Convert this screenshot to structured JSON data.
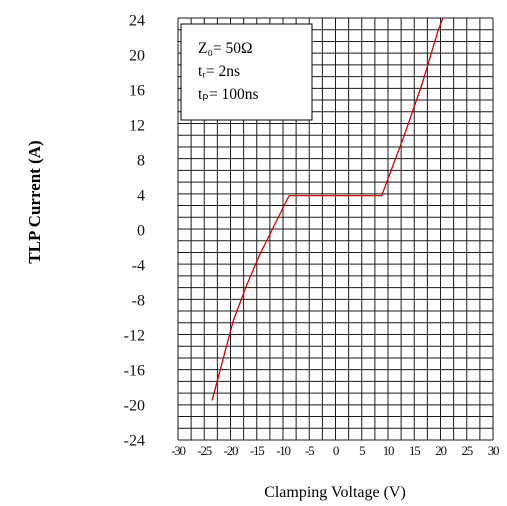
{
  "chart_data": {
    "type": "line",
    "title": "",
    "xlabel": "Clamping Voltage (V)",
    "ylabel": "TLP Current (A)",
    "xlim": [
      -30,
      30
    ],
    "ylim": [
      -24,
      24
    ],
    "grid": true,
    "x_ticks": [
      -30,
      -25,
      -20,
      -15,
      -10,
      -5,
      0,
      5,
      10,
      15,
      20,
      25,
      30
    ],
    "y_tick_labels": [
      "24",
      "20",
      "16",
      "12",
      "8",
      "4",
      "0",
      "-4",
      "-8",
      "-12",
      "-16",
      "-20",
      "-24"
    ],
    "annotations": [
      "Z₀= 50Ω",
      "tᵣ= 2ns",
      "tₚ= 100ns"
    ],
    "series": [
      {
        "color": "#d40000",
        "points": [
          [
            -23.5,
            -19.5
          ],
          [
            -21.5,
            -15.0
          ],
          [
            -19.5,
            -10.5
          ],
          [
            -17.0,
            -6.5
          ],
          [
            -14.5,
            -3.0
          ],
          [
            -12.0,
            0.0
          ],
          [
            -9.5,
            3.0
          ],
          [
            -8.8,
            3.8
          ],
          [
            8.8,
            3.8
          ],
          [
            10.5,
            6.5
          ],
          [
            13.0,
            10.5
          ],
          [
            16.5,
            16.5
          ],
          [
            19.5,
            22.5
          ],
          [
            23.5,
            28.8
          ]
        ]
      }
    ]
  }
}
